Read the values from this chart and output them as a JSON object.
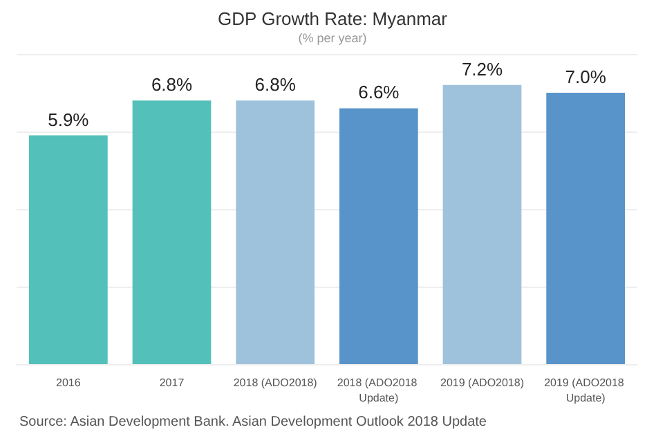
{
  "chart_data": {
    "type": "bar",
    "title": "GDP Growth Rate: Myanmar",
    "subtitle": "(% per year)",
    "categories": [
      "2016",
      "2017",
      "2018 (ADO2018)",
      "2018 (ADO2018 Update)",
      "2019 (ADO2018)",
      "2019 (ADO2018 Update)"
    ],
    "values": [
      5.9,
      6.8,
      6.8,
      6.6,
      7.2,
      7.0
    ],
    "value_labels": [
      "5.9%",
      "6.8%",
      "6.8%",
      "6.6%",
      "7.2%",
      "7.0%"
    ],
    "colors": [
      "#53c0b9",
      "#53c0b9",
      "#9fc2dc",
      "#5893ca",
      "#9fc2dc",
      "#5893ca"
    ],
    "ylim": [
      0,
      8
    ],
    "yticks": [
      {
        "value": 0,
        "label": null
      },
      {
        "value": 2,
        "label": null
      },
      {
        "value": 4,
        "label": null
      },
      {
        "value": 6,
        "label": null
      },
      {
        "value": 8,
        "label": null
      }
    ],
    "grid": "y",
    "tick_labels": "x",
    "annotations": [
      "Source: Asian Development Bank. Asian Development Outlook 2018 Update"
    ]
  }
}
